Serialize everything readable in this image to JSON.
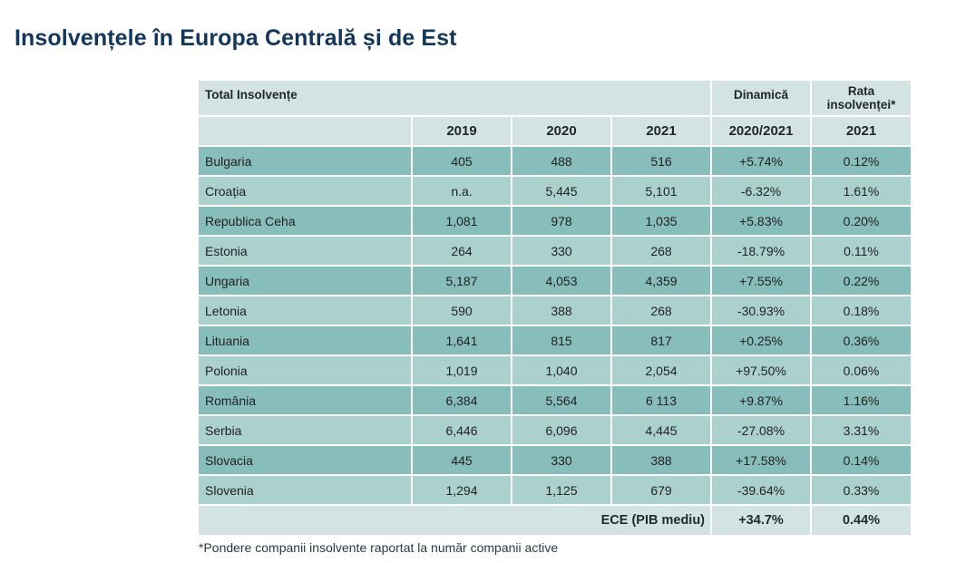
{
  "page": {
    "title": "Insolvențele în Europa Centrală și de Est"
  },
  "table": {
    "header_total": "Total Insolvențe",
    "header_dynamics": "Dinamică",
    "header_rate_line1": "Rata",
    "header_rate_line2": "insolvenței*",
    "columns": [
      "2019",
      "2020",
      "2021",
      "2020/2021",
      "2021"
    ],
    "rows": [
      {
        "country": "Bulgaria",
        "y2019": "405",
        "y2020": "488",
        "y2021": "516",
        "dyn": "+5.74%",
        "rate": "0.12%"
      },
      {
        "country": "Croația",
        "y2019": "n.a.",
        "y2020": "5,445",
        "y2021": "5,101",
        "dyn": "-6.32%",
        "rate": "1.61%"
      },
      {
        "country": "Republica Ceha",
        "y2019": "1,081",
        "y2020": "978",
        "y2021": "1,035",
        "dyn": "+5.83%",
        "rate": "0.20%"
      },
      {
        "country": "Estonia",
        "y2019": "264",
        "y2020": "330",
        "y2021": "268",
        "dyn": "-18.79%",
        "rate": "0.11%"
      },
      {
        "country": "Ungaria",
        "y2019": "5,187",
        "y2020": "4,053",
        "y2021": "4,359",
        "dyn": "+7.55%",
        "rate": "0.22%"
      },
      {
        "country": "Letonia",
        "y2019": "590",
        "y2020": "388",
        "y2021": "268",
        "dyn": "-30.93%",
        "rate": "0.18%"
      },
      {
        "country": "Lituania",
        "y2019": "1,641",
        "y2020": "815",
        "y2021": "817",
        "dyn": "+0.25%",
        "rate": "0.36%"
      },
      {
        "country": "Polonia",
        "y2019": "1,019",
        "y2020": "1,040",
        "y2021": "2,054",
        "dyn": "+97.50%",
        "rate": "0.06%"
      },
      {
        "country": "România",
        "y2019": "6,384",
        "y2020": "5,564",
        "y2021": "6 113",
        "dyn": "+9.87%",
        "rate": "1.16%"
      },
      {
        "country": "Serbia",
        "y2019": "6,446",
        "y2020": "6,096",
        "y2021": "4,445",
        "dyn": "-27.08%",
        "rate": "3.31%"
      },
      {
        "country": "Slovacia",
        "y2019": "445",
        "y2020": "330",
        "y2021": "388",
        "dyn": "+17.58%",
        "rate": "0.14%"
      },
      {
        "country": "Slovenia",
        "y2019": "1,294",
        "y2020": "1,125",
        "y2021": "679",
        "dyn": "-39.64%",
        "rate": "0.33%"
      }
    ],
    "footer": {
      "label": "ECE (PIB mediu)",
      "dyn": "+34.7%",
      "rate": "0.44%"
    }
  },
  "footnote": "*Pondere companii insolvente raportat la număr companii active",
  "colors": {
    "title": "#13365c",
    "header_bg": "#d3e3e2",
    "row_dark": "#87bdba",
    "row_light": "#abd1cf"
  }
}
